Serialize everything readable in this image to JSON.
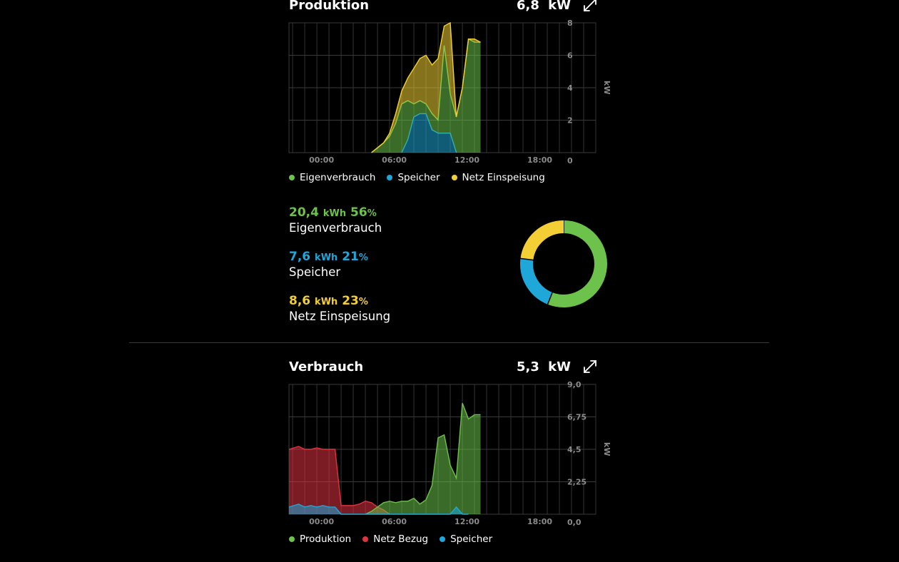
{
  "colors": {
    "green": "#6cc24a",
    "blue": "#1ea7d8",
    "yellow": "#f3cf35",
    "red": "#e0323f"
  },
  "production": {
    "title": "Produktion",
    "power_value": "6,8",
    "power_unit": "kW",
    "icon": "expand-icon",
    "legend": [
      "Eigenverbrauch",
      "Speicher",
      "Netz Einspeisung"
    ],
    "stats": [
      {
        "value": "20,4",
        "unit": "kWh",
        "percent": "56",
        "percent_sign": "%",
        "label": "Eigenverbrauch",
        "color": "#6cc24a"
      },
      {
        "value": "7,6",
        "unit": "kWh",
        "percent": "21",
        "percent_sign": "%",
        "label": "Speicher",
        "color": "#1ea7d8"
      },
      {
        "value": "8,6",
        "unit": "kWh",
        "percent": "23",
        "percent_sign": "%",
        "label": "Netz Einspeisung",
        "color": "#f3cf35"
      }
    ]
  },
  "consumption": {
    "title": "Verbrauch",
    "power_value": "5,3",
    "power_unit": "kW",
    "icon": "expand-icon",
    "legend": [
      "Produktion",
      "Netz Bezug",
      "Speicher"
    ]
  },
  "chart_data": [
    {
      "type": "area",
      "x_unit": "hour",
      "x_ticks": [
        "00:00",
        "06:00",
        "12:00",
        "18:00"
      ],
      "y_ticks": [
        "0",
        "2",
        "4",
        "6",
        "8"
      ],
      "ylabel": "kW",
      "xlim": [
        -1.3,
        24
      ],
      "ylim": [
        0,
        8
      ],
      "stacked": true,
      "series": [
        {
          "name": "Speicher",
          "color": "#1ea7d8",
          "x": [
            8.0,
            8.5,
            9.0,
            9.5,
            10.0,
            10.5,
            11.0,
            11.5,
            12.0,
            12.5
          ],
          "y": [
            0.0,
            0.8,
            2.2,
            2.4,
            2.4,
            1.4,
            1.2,
            1.2,
            1.2,
            0.0
          ]
        },
        {
          "name": "Eigenverbrauch",
          "color": "#6cc24a",
          "x": [
            5.5,
            6.0,
            6.5,
            7.0,
            7.5,
            8.0,
            8.5,
            9.0,
            9.5,
            10.0,
            10.5,
            11.0,
            11.5,
            12.0,
            12.5,
            13.0,
            13.5,
            14.0,
            14.5
          ],
          "y": [
            0.0,
            0.3,
            0.6,
            1.0,
            1.8,
            3.0,
            2.4,
            0.8,
            0.8,
            0.6,
            1.0,
            0.8,
            5.4,
            2.4,
            2.2,
            4.0,
            7.0,
            6.8,
            6.8
          ]
        },
        {
          "name": "Netz Einspeisung",
          "color": "#f3cf35",
          "x": [
            5.5,
            6.0,
            6.5,
            7.0,
            7.5,
            8.0,
            8.5,
            9.0,
            9.5,
            10.0,
            10.5,
            11.0,
            11.5,
            12.0,
            12.5,
            13.0,
            13.5,
            14.0,
            14.5
          ],
          "y": [
            0.0,
            0.0,
            0.0,
            0.2,
            0.6,
            0.8,
            1.4,
            2.2,
            2.6,
            3.0,
            3.0,
            3.8,
            1.2,
            4.4,
            0.0,
            0.0,
            0.0,
            0.2,
            0.0
          ]
        }
      ]
    },
    {
      "type": "donut",
      "series": [
        {
          "name": "Eigenverbrauch",
          "value": 56,
          "color": "#6cc24a"
        },
        {
          "name": "Speicher",
          "value": 21,
          "color": "#1ea7d8"
        },
        {
          "name": "Netz Einspeisung",
          "value": 23,
          "color": "#f3cf35"
        }
      ]
    },
    {
      "type": "area",
      "x_unit": "hour",
      "x_ticks": [
        "00:00",
        "06:00",
        "12:00",
        "18:00"
      ],
      "y_ticks": [
        "0,0",
        "2,25",
        "4,5",
        "6,75",
        "9,0"
      ],
      "ylabel": "kW",
      "xlim": [
        -1.3,
        24
      ],
      "ylim": [
        0,
        9
      ],
      "stacked": false,
      "series": [
        {
          "name": "Netz Bezug",
          "color": "#e0323f",
          "x": [
            -1.3,
            -0.5,
            0.0,
            0.5,
            1.0,
            1.5,
            2.0,
            2.5,
            3.0,
            3.5,
            4.0,
            4.5,
            5.0,
            5.5,
            6.0,
            6.5,
            7.0
          ],
          "y": [
            4.5,
            4.7,
            4.5,
            4.5,
            4.6,
            4.5,
            4.5,
            4.5,
            0.6,
            0.6,
            0.6,
            0.7,
            0.9,
            0.8,
            0.5,
            0.3,
            0.0
          ]
        },
        {
          "name": "Produktion",
          "color": "#6cc24a",
          "x": [
            5.0,
            5.5,
            6.0,
            6.5,
            7.0,
            7.5,
            8.0,
            8.5,
            9.0,
            9.5,
            10.0,
            10.5,
            11.0,
            11.5,
            12.0,
            12.5,
            13.0,
            13.5,
            14.0,
            14.5
          ],
          "y": [
            0.0,
            0.2,
            0.5,
            0.8,
            0.9,
            0.8,
            0.9,
            0.9,
            1.1,
            0.7,
            1.0,
            2.0,
            5.3,
            5.5,
            3.4,
            2.5,
            7.7,
            6.6,
            6.9,
            6.9
          ]
        },
        {
          "name": "Speicher",
          "color": "#1ea7d8",
          "x": [
            -1.3,
            -0.5,
            0.0,
            0.5,
            1.0,
            1.5,
            2.0,
            2.5,
            3.0,
            3.5,
            12.0,
            12.5,
            13.0,
            13.5
          ],
          "y": [
            0.5,
            0.7,
            0.5,
            0.6,
            0.5,
            0.6,
            0.5,
            0.5,
            0.0,
            0.0,
            0.0,
            0.5,
            0.0,
            0.0
          ]
        }
      ]
    }
  ]
}
